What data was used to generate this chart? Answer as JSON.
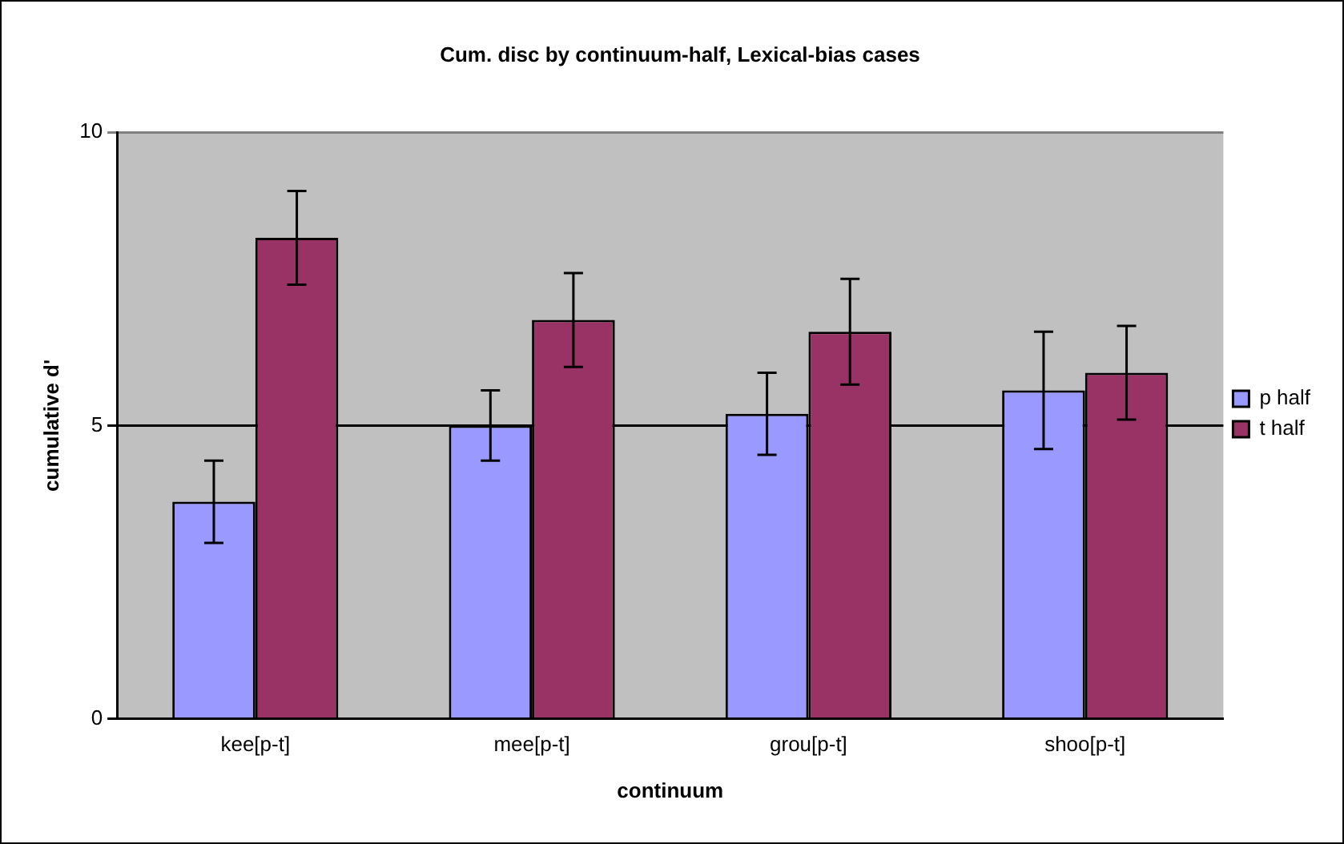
{
  "chart_data": {
    "type": "bar",
    "title": "Cum. disc by continuum-half, Lexical-bias cases",
    "xlabel": "continuum",
    "ylabel": "cumulative d'",
    "categories": [
      "kee[p-t]",
      "mee[p-t]",
      "grou[p-t]",
      "shoo[p-t]"
    ],
    "series": [
      {
        "name": "p half",
        "color": "#9999ff",
        "values": [
          3.7,
          5.0,
          5.2,
          5.6
        ],
        "errors": [
          0.7,
          0.6,
          0.7,
          1.0
        ]
      },
      {
        "name": "t half",
        "color": "#993366",
        "values": [
          8.2,
          6.8,
          6.6,
          5.9
        ],
        "errors": [
          0.8,
          0.8,
          0.9,
          0.8
        ]
      }
    ],
    "ylim": [
      0,
      10
    ],
    "yticks": [
      0,
      5,
      10
    ],
    "grid": "y",
    "legend": "right"
  }
}
